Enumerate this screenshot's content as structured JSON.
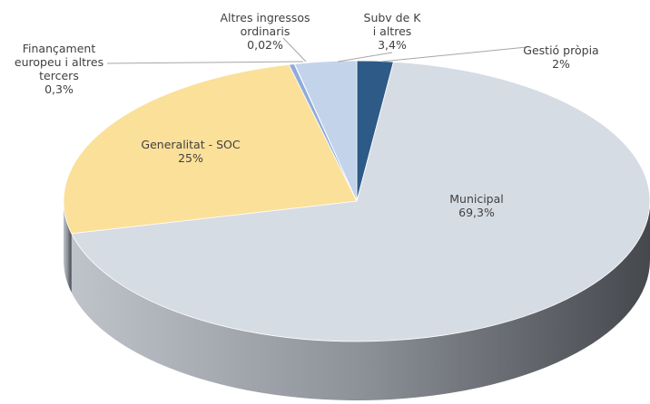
{
  "chart_data": {
    "type": "pie",
    "categories": [
      "Gestió pròpia",
      "Municipal",
      "Generalitat - SOC",
      "Finançament europeu i altres tercers",
      "Altres ingressos ordinaris",
      "Subv de K i altres"
    ],
    "values": [
      2,
      69.3,
      25,
      0.3,
      0.02,
      3.4
    ],
    "value_labels": [
      "2%",
      "69,3%",
      "25%",
      "0,3%",
      "0,02%",
      "3,4%"
    ],
    "colors": [
      "#2e5a87",
      "#d6dce4",
      "#fbe099",
      "#8faadc",
      "#a9c0e4",
      "#c3d3ea"
    ]
  }
}
